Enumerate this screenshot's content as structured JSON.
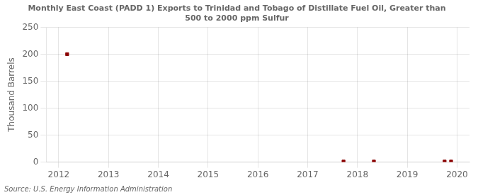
{
  "chart_data": {
    "type": "scatter",
    "title": [
      "Monthly East Coast (PADD 1) Exports to Trinidad and Tobago of Distillate Fuel Oil, Greater than",
      "500 to 2000 ppm Sulfur"
    ],
    "ylabel": "Thousand Barrels",
    "annotations": [
      "Source: U.S. Energy Information Administration"
    ],
    "x": [
      2012.17,
      2017.72,
      2018.33,
      2019.75,
      2019.88
    ],
    "values": [
      200,
      1,
      1,
      1,
      1
    ],
    "color": "#8b0000",
    "marker": "square",
    "xlim": [
      2011.75,
      2020.25
    ],
    "xticks": [
      2012,
      2013,
      2014,
      2015,
      2016,
      2017,
      2018,
      2019,
      2020
    ],
    "ylim": [
      0,
      250
    ],
    "yticks": [
      0,
      50,
      100,
      150,
      200,
      250
    ],
    "grid": true
  }
}
